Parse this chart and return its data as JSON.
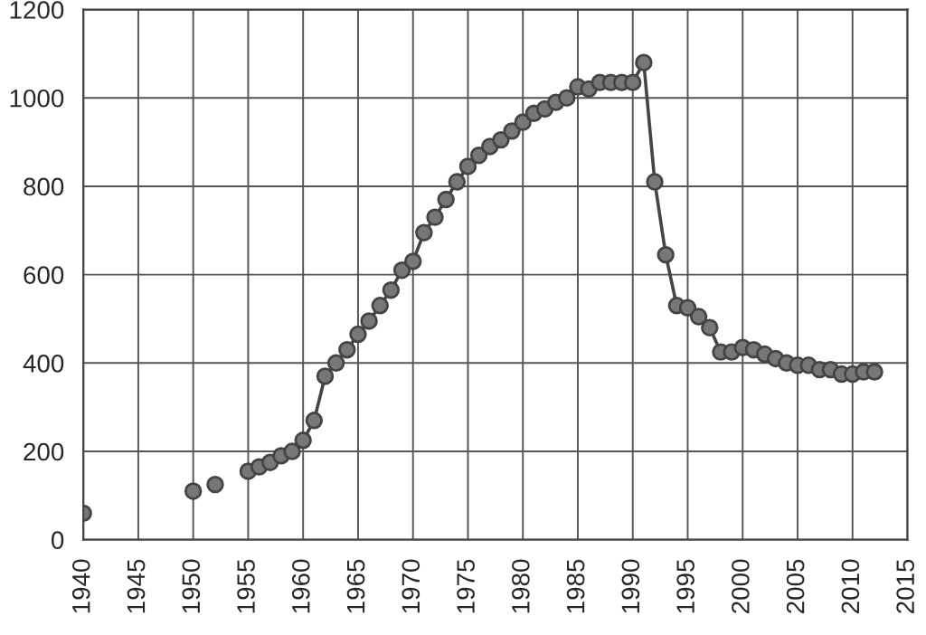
{
  "chart_data": {
    "type": "line",
    "marker": "circle",
    "line_style": "solid",
    "grid": true,
    "x": [
      1940,
      1945,
      1950,
      1951,
      1952,
      1953,
      1955,
      1956,
      1957,
      1958,
      1959,
      1960,
      1961,
      1962,
      1963,
      1964,
      1965,
      1966,
      1967,
      1968,
      1969,
      1970,
      1971,
      1972,
      1973,
      1974,
      1975,
      1976,
      1977,
      1978,
      1979,
      1980,
      1981,
      1982,
      1983,
      1984,
      1985,
      1986,
      1987,
      1988,
      1989,
      1990,
      1991,
      1992,
      1993,
      1994,
      1995,
      1996,
      1997,
      1998,
      1999,
      2000,
      2001,
      2002,
      2003,
      2004,
      2005,
      2006,
      2007,
      2008,
      2009,
      2010,
      2011,
      2012
    ],
    "series": [
      {
        "color": "#777777",
        "values": [
          60,
          null,
          110,
          null,
          125,
          null,
          155,
          165,
          175,
          190,
          200,
          225,
          270,
          370,
          400,
          430,
          465,
          495,
          530,
          565,
          610,
          630,
          695,
          730,
          770,
          810,
          845,
          870,
          890,
          905,
          925,
          945,
          965,
          975,
          990,
          1000,
          1025,
          1020,
          1035,
          1035,
          1035,
          1035,
          1080,
          810,
          645,
          530,
          525,
          505,
          480,
          425,
          425,
          435,
          430,
          420,
          410,
          400,
          395,
          395,
          385,
          385,
          375,
          375,
          380,
          380
        ]
      }
    ],
    "xlim": [
      1940,
      2015
    ],
    "xticks": [
      1940,
      1945,
      1950,
      1955,
      1960,
      1965,
      1970,
      1975,
      1980,
      1985,
      1990,
      1995,
      2000,
      2005,
      2010,
      2015
    ],
    "ylim": [
      0,
      1200
    ],
    "yticks": [
      0,
      200,
      400,
      600,
      800,
      1000,
      1200
    ]
  }
}
